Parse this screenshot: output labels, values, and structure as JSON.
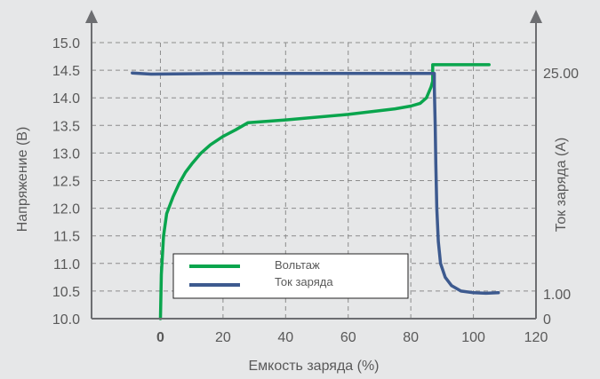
{
  "colors": {
    "background": "#e6e7e8",
    "axis": "#6d6e71",
    "grid": "#8c8c8c",
    "text": "#595959",
    "voltage": "#0aa54d",
    "current": "#3d5a8f"
  },
  "chart_data": {
    "type": "line",
    "title": "",
    "xlabel": "Емкость заряда (%)",
    "ylabel_left": "Напряжение (В)",
    "ylabel_right": "Ток заряда (А)",
    "xlim": [
      -22,
      120
    ],
    "ylim_left": [
      10.0,
      15.0
    ],
    "x_ticks": [
      "0",
      "20",
      "40",
      "60",
      "80",
      "100",
      "120"
    ],
    "x_tick_values": [
      0,
      20,
      40,
      60,
      80,
      100,
      120
    ],
    "y_ticks_left": [
      "10.0",
      "10.5",
      "11.0",
      "11.5",
      "12.0",
      "12.5",
      "13.0",
      "13.5",
      "14.0",
      "14.5",
      "15.0"
    ],
    "y_tick_values_left": [
      10.0,
      10.5,
      11.0,
      11.5,
      12.0,
      12.5,
      13.0,
      13.5,
      14.0,
      14.5,
      15.0
    ],
    "y_ticks_right": [
      {
        "label": "0",
        "at_left_value": 10.0
      },
      {
        "label": "1.00",
        "at_left_value": 10.45
      },
      {
        "label": "25.00",
        "at_left_value": 14.45
      }
    ],
    "grid": true,
    "legend_position": "bottom-center",
    "series": [
      {
        "name": "Вольтаж",
        "axis": "left",
        "color": "#0aa54d",
        "x": [
          0,
          0.3,
          1,
          2,
          4,
          6,
          8,
          10,
          13,
          16,
          20,
          24,
          28,
          40,
          60,
          75,
          80,
          83,
          85,
          86.5,
          87,
          87,
          95,
          105
        ],
        "y": [
          10.0,
          10.8,
          11.5,
          11.9,
          12.2,
          12.45,
          12.65,
          12.8,
          13.0,
          13.15,
          13.3,
          13.42,
          13.55,
          13.6,
          13.7,
          13.8,
          13.85,
          13.9,
          14.0,
          14.2,
          14.3,
          14.6,
          14.6,
          14.6
        ]
      },
      {
        "name": "Ток заряда",
        "axis": "left",
        "color": "#3d5a8f",
        "x": [
          -9,
          -3,
          20,
          50,
          87.5,
          87.5,
          87.8,
          88,
          88.3,
          88.8,
          89.5,
          91,
          93,
          96,
          100,
          104,
          108
        ],
        "y": [
          14.45,
          14.43,
          14.44,
          14.44,
          14.44,
          14.2,
          13.5,
          12.8,
          12.0,
          11.4,
          11.0,
          10.75,
          10.6,
          10.5,
          10.47,
          10.46,
          10.47
        ]
      }
    ]
  },
  "legend": {
    "items": [
      {
        "label": "Вольтаж",
        "color": "#0aa54d"
      },
      {
        "label": "Ток заряда",
        "color": "#3d5a8f"
      }
    ]
  }
}
